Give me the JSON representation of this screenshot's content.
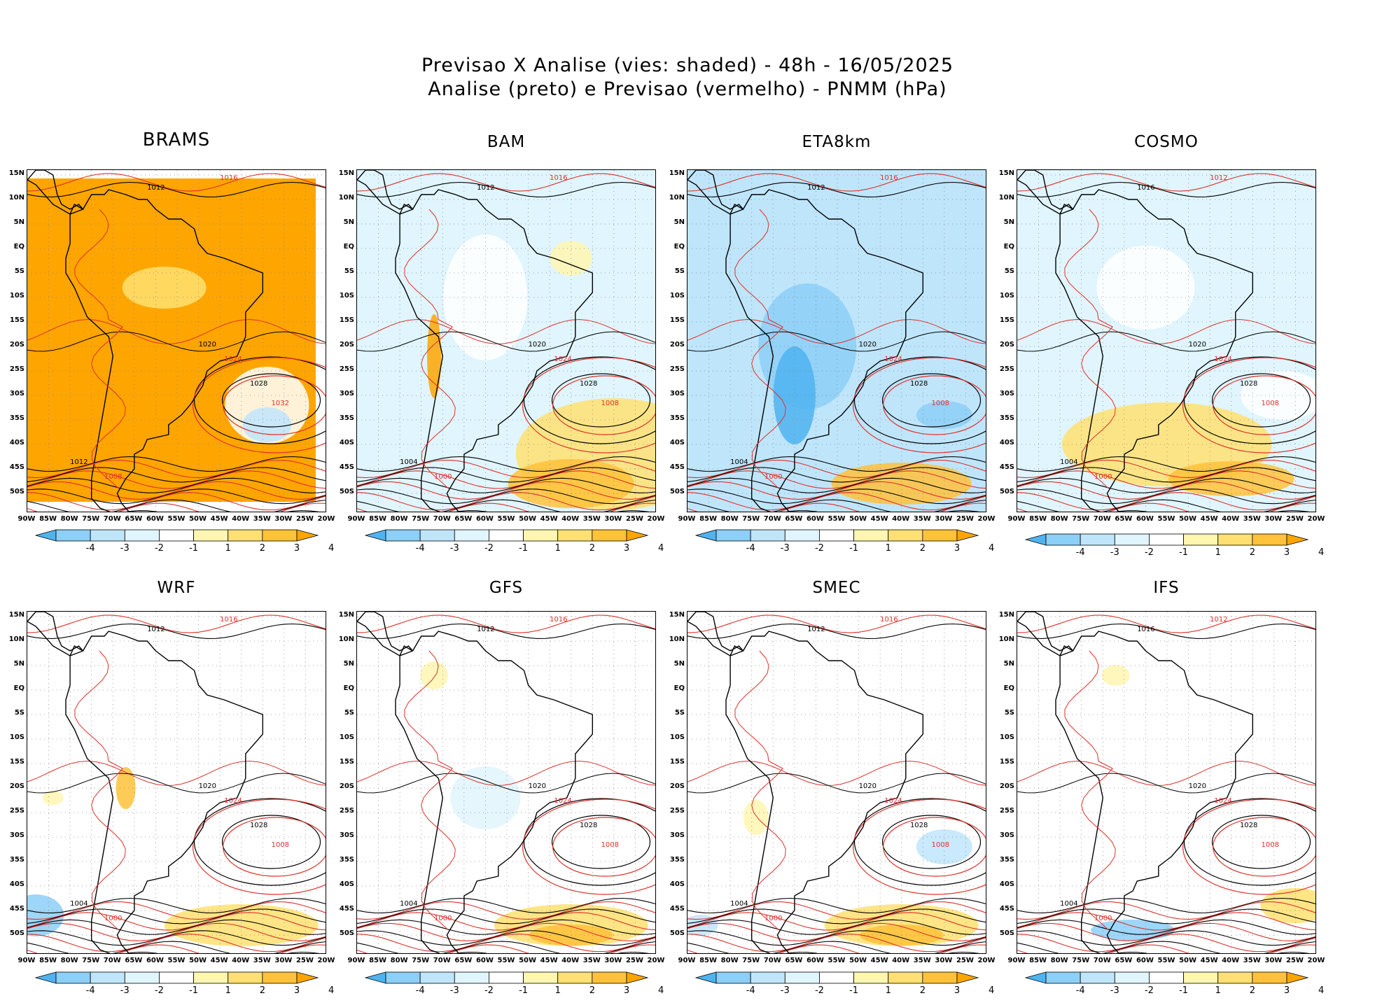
{
  "title_line1": "Previsao X Analise (vies: shaded) - 48h - 16/05/2025",
  "title_line2": "Analise (preto) e Previsao (vermelho) - PNMM (hPa)",
  "lat_labels": [
    "15N",
    "10N",
    "5N",
    "EQ",
    "5S",
    "10S",
    "15S",
    "20S",
    "25S",
    "30S",
    "35S",
    "40S",
    "45S",
    "50S"
  ],
  "lon_labels": [
    "90W",
    "85W",
    "80W",
    "75W",
    "70W",
    "65W",
    "60W",
    "55W",
    "50W",
    "45W",
    "40W",
    "35W",
    "30W",
    "25W",
    "20W"
  ],
  "colorbar": {
    "labels": [
      "-4",
      "-3",
      "-2",
      "-1",
      "1",
      "2",
      "3",
      "4"
    ],
    "colors": [
      "#4fb3f0",
      "#8ccff7",
      "#bfe5fb",
      "#e0f5fd",
      "#ffffff",
      "#fff6b0",
      "#ffe070",
      "#ffc23a",
      "#ffa500"
    ]
  },
  "colors": {
    "analysis": "#000000",
    "forecast": "#e0302a",
    "land_outline": "#000000"
  },
  "panels": [
    {
      "name": "BRAMS",
      "labels": [
        "1012",
        "1016",
        "1020",
        "1024",
        "1028",
        "1032",
        "1012",
        "1008"
      ]
    },
    {
      "name": "BAM",
      "labels": [
        "1012",
        "1016",
        "1020",
        "1024",
        "1028",
        "1008",
        "1004",
        "1000"
      ]
    },
    {
      "name": "ETA8km",
      "labels": [
        "1012",
        "1016",
        "1020",
        "1024",
        "1028",
        "1008",
        "1004",
        "1000"
      ]
    },
    {
      "name": "COSMO",
      "labels": [
        "1016",
        "1012",
        "1020",
        "1024",
        "1028",
        "1008",
        "1004",
        "1000"
      ]
    },
    {
      "name": "WRF",
      "labels": [
        "1012",
        "1016",
        "1020",
        "1024",
        "1028",
        "1008",
        "1004",
        "1000"
      ]
    },
    {
      "name": "GFS",
      "labels": [
        "1012",
        "1016",
        "1020",
        "1024",
        "1028",
        "1008",
        "1004",
        "1000"
      ]
    },
    {
      "name": "SMEC",
      "labels": [
        "1012",
        "1016",
        "1020",
        "1024",
        "1028",
        "1008",
        "1004",
        "1000"
      ]
    },
    {
      "name": "IFS",
      "labels": [
        "1016",
        "1012",
        "1020",
        "1024",
        "1028",
        "1008",
        "1004",
        "1000"
      ]
    }
  ]
}
